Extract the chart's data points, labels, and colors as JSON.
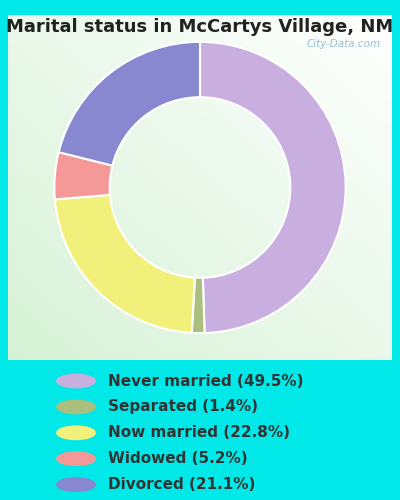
{
  "title": "Marital status in McCartys Village, NM",
  "slices": [
    49.5,
    1.4,
    22.8,
    5.2,
    21.1
  ],
  "labels": [
    "Never married (49.5%)",
    "Separated (1.4%)",
    "Now married (22.8%)",
    "Widowed (5.2%)",
    "Divorced (21.1%)"
  ],
  "colors": [
    "#c9aee0",
    "#aabf7e",
    "#f0f07a",
    "#f49898",
    "#8888d0"
  ],
  "legend_dot_colors": [
    "#c9aee0",
    "#aabf7e",
    "#f0f07a",
    "#f49898",
    "#8888d0"
  ],
  "bg_color": "#00e8e8",
  "chart_rect_color": "#e8f5e8",
  "title_fontsize": 13,
  "legend_fontsize": 11,
  "watermark": "City-Data.com",
  "startangle": 90,
  "donut_width": 0.38
}
